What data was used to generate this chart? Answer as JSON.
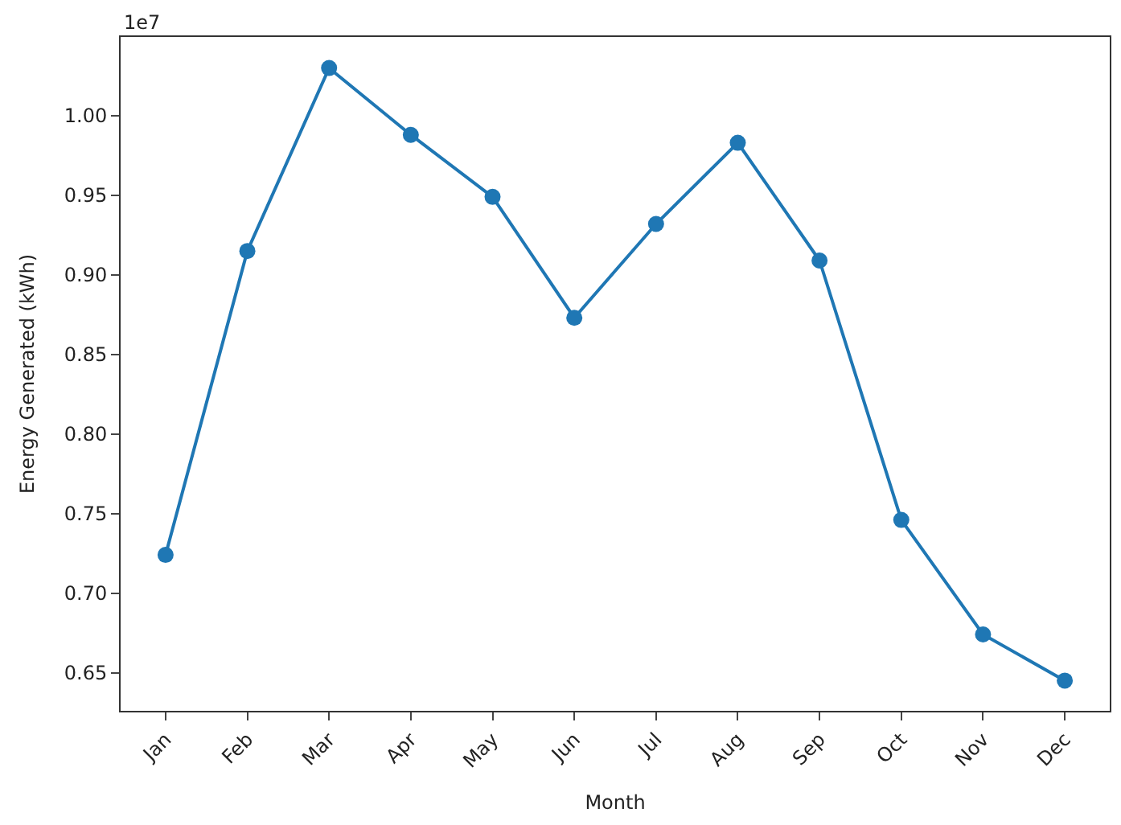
{
  "chart_data": {
    "type": "line",
    "xlabel": "Month",
    "ylabel": "Energy Generated (kWh)",
    "categories": [
      "Jan",
      "Feb",
      "Mar",
      "Apr",
      "May",
      "Jun",
      "Jul",
      "Aug",
      "Sep",
      "Oct",
      "Nov",
      "Dec"
    ],
    "series": [
      {
        "color": "#1f77b4",
        "values": [
          0.724,
          0.915,
          1.03,
          0.988,
          0.949,
          0.873,
          0.932,
          0.983,
          0.909,
          0.746,
          0.674,
          0.645
        ]
      }
    ],
    "ylim": [
      0.626,
      1.0495
    ],
    "yticks": [
      0.65,
      {
        "value": 0.7,
        "label": "0.70"
      },
      0.75,
      {
        "value": 0.8,
        "label": "0.80"
      },
      0.85,
      {
        "value": 0.9,
        "label": "0.90"
      },
      0.95,
      {
        "value": 1.0,
        "label": "1.00"
      }
    ],
    "annotations": [
      "1e7"
    ],
    "marker": "circle",
    "line_style": "solid"
  }
}
